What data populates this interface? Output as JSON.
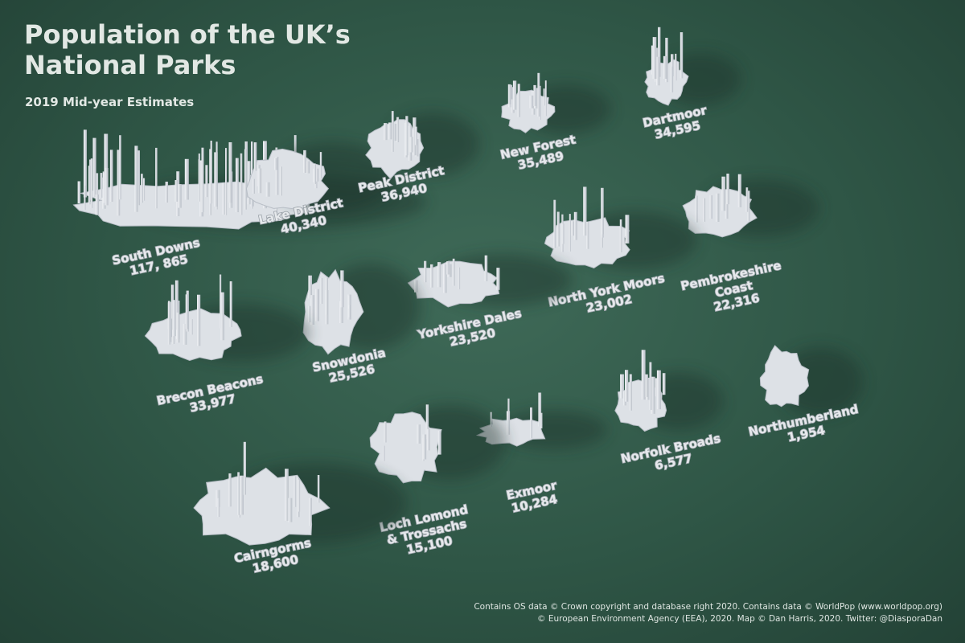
{
  "title": "Population of the UK’s National Parks",
  "subtitle": "2019 Mid-year Estimates",
  "credits": [
    "Contains OS data © Crown copyright and database right 2020. Contains data © WorldPop (www.worldpop.org)",
    "© European Environment Agency (EEA), 2020. Map © Dan Harris, 2020. Twitter: @DiasporaDan"
  ],
  "colors": {
    "background": "#2f5646",
    "park": "#dde1e6",
    "label": "#e6e9ec"
  },
  "parks": [
    {
      "name": [
        "South Downs"
      ],
      "population": "117, 865"
    },
    {
      "name": [
        "Lake District"
      ],
      "population": "40,340"
    },
    {
      "name": [
        "Peak District"
      ],
      "population": "36,940"
    },
    {
      "name": [
        "New Forest"
      ],
      "population": "35,489"
    },
    {
      "name": [
        "Dartmoor"
      ],
      "population": "34,595"
    },
    {
      "name": [
        "Pembrokeshire",
        "Coast"
      ],
      "population": "22,316"
    },
    {
      "name": [
        "North York Moors"
      ],
      "population": "23,002"
    },
    {
      "name": [
        "Yorkshire Dales"
      ],
      "population": "23,520"
    },
    {
      "name": [
        "Snowdonia"
      ],
      "population": "25,526"
    },
    {
      "name": [
        "Brecon Beacons"
      ],
      "population": "33,977"
    },
    {
      "name": [
        "Northumberland"
      ],
      "population": "1,954"
    },
    {
      "name": [
        "Norfolk Broads"
      ],
      "population": "6,577"
    },
    {
      "name": [
        "Exmoor"
      ],
      "population": "10,284"
    },
    {
      "name": [
        "Loch Lomond",
        "& Trossachs"
      ],
      "population": "15,100"
    },
    {
      "name": [
        "Cairngorms"
      ],
      "population": "18,600"
    }
  ]
}
